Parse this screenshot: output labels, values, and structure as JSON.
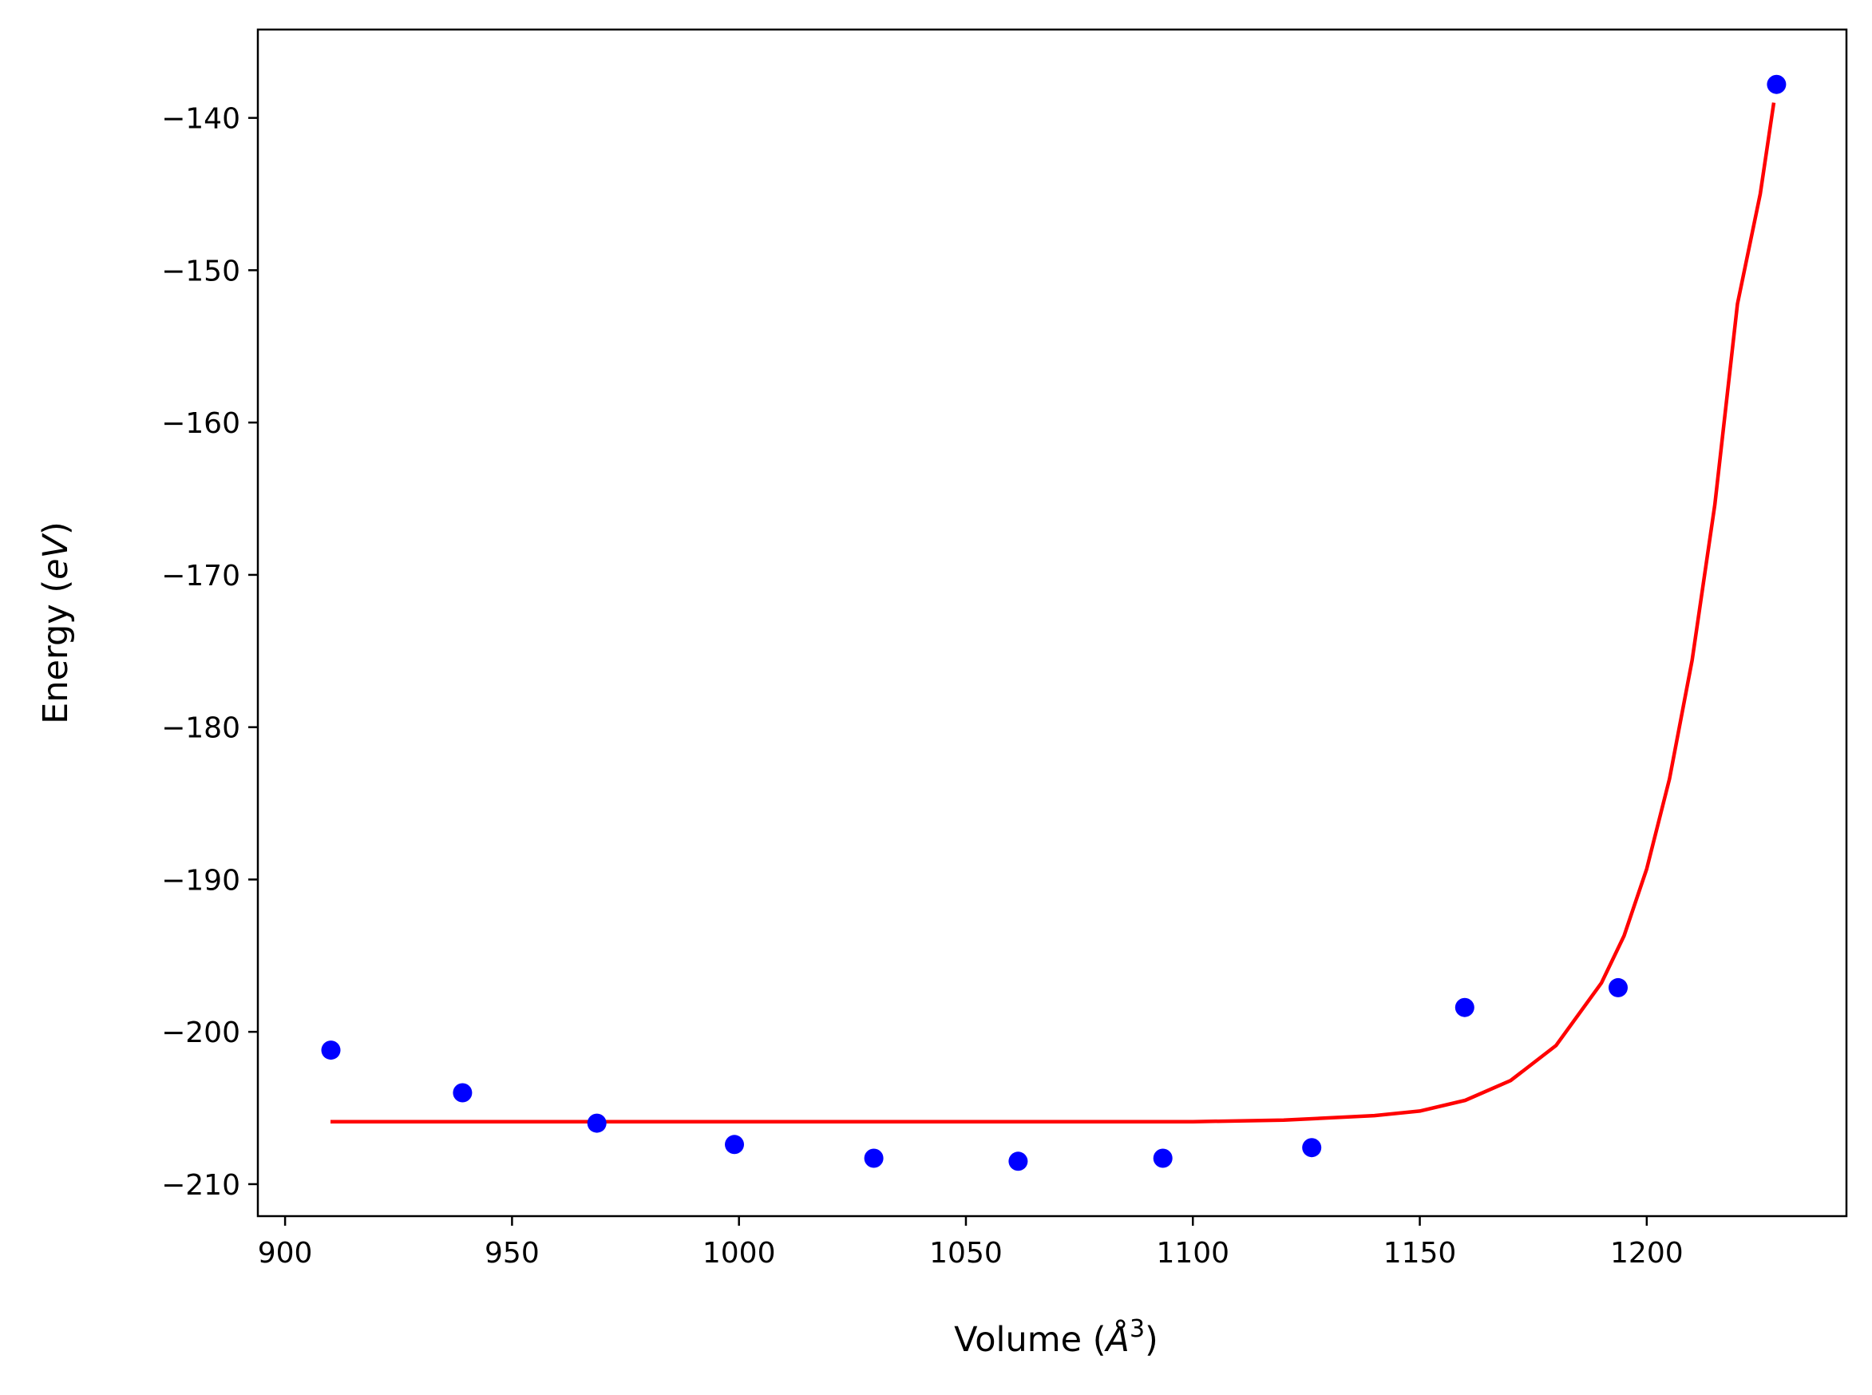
{
  "chart_data": {
    "type": "scatter",
    "xlabel": {
      "prefix": "Volume (",
      "symbol": "Å",
      "superscript": "3",
      "suffix": ")"
    },
    "ylabel": {
      "prefix": "Energy (",
      "italic": "eV",
      "suffix": ")"
    },
    "xlim": [
      894,
      1244
    ],
    "ylim": [
      -212.1,
      -134.2
    ],
    "xticks": [
      900,
      950,
      1000,
      1050,
      1100,
      1150,
      1200
    ],
    "xtick_labels": [
      "900",
      "950",
      "1000",
      "1050",
      "1100",
      "1150",
      "1200"
    ],
    "yticks": [
      -140,
      -150,
      -160,
      -170,
      -180,
      -190,
      -200,
      -210
    ],
    "ytick_labels": [
      "−140",
      "−150",
      "−160",
      "−170",
      "−180",
      "−190",
      "−200",
      "−210"
    ],
    "grid": false,
    "series": [
      {
        "kind": "points",
        "color": "#0000ff",
        "x": [
          910.1,
          939.1,
          968.7,
          999.0,
          1029.7,
          1061.5,
          1093.4,
          1126.2,
          1159.9,
          1193.7,
          1228.6
        ],
        "y": [
          -201.2,
          -204.0,
          -206.0,
          -207.4,
          -208.3,
          -208.5,
          -208.3,
          -207.6,
          -198.4,
          -197.1,
          -137.8
        ]
      },
      {
        "kind": "line",
        "color": "#ff0000",
        "x": [
          910,
          950,
          1000,
          1050,
          1100,
          1120,
          1140,
          1150,
          1160,
          1170,
          1180,
          1190,
          1195,
          1200,
          1205,
          1210,
          1215,
          1220,
          1225,
          1228
        ],
        "y": [
          -205.9,
          -205.9,
          -205.9,
          -205.9,
          -205.9,
          -205.8,
          -205.5,
          -205.2,
          -204.5,
          -203.2,
          -200.9,
          -196.8,
          -193.7,
          -189.3,
          -183.4,
          -175.6,
          -165.4,
          -152.2,
          -145.0,
          -139.0
        ]
      }
    ]
  }
}
